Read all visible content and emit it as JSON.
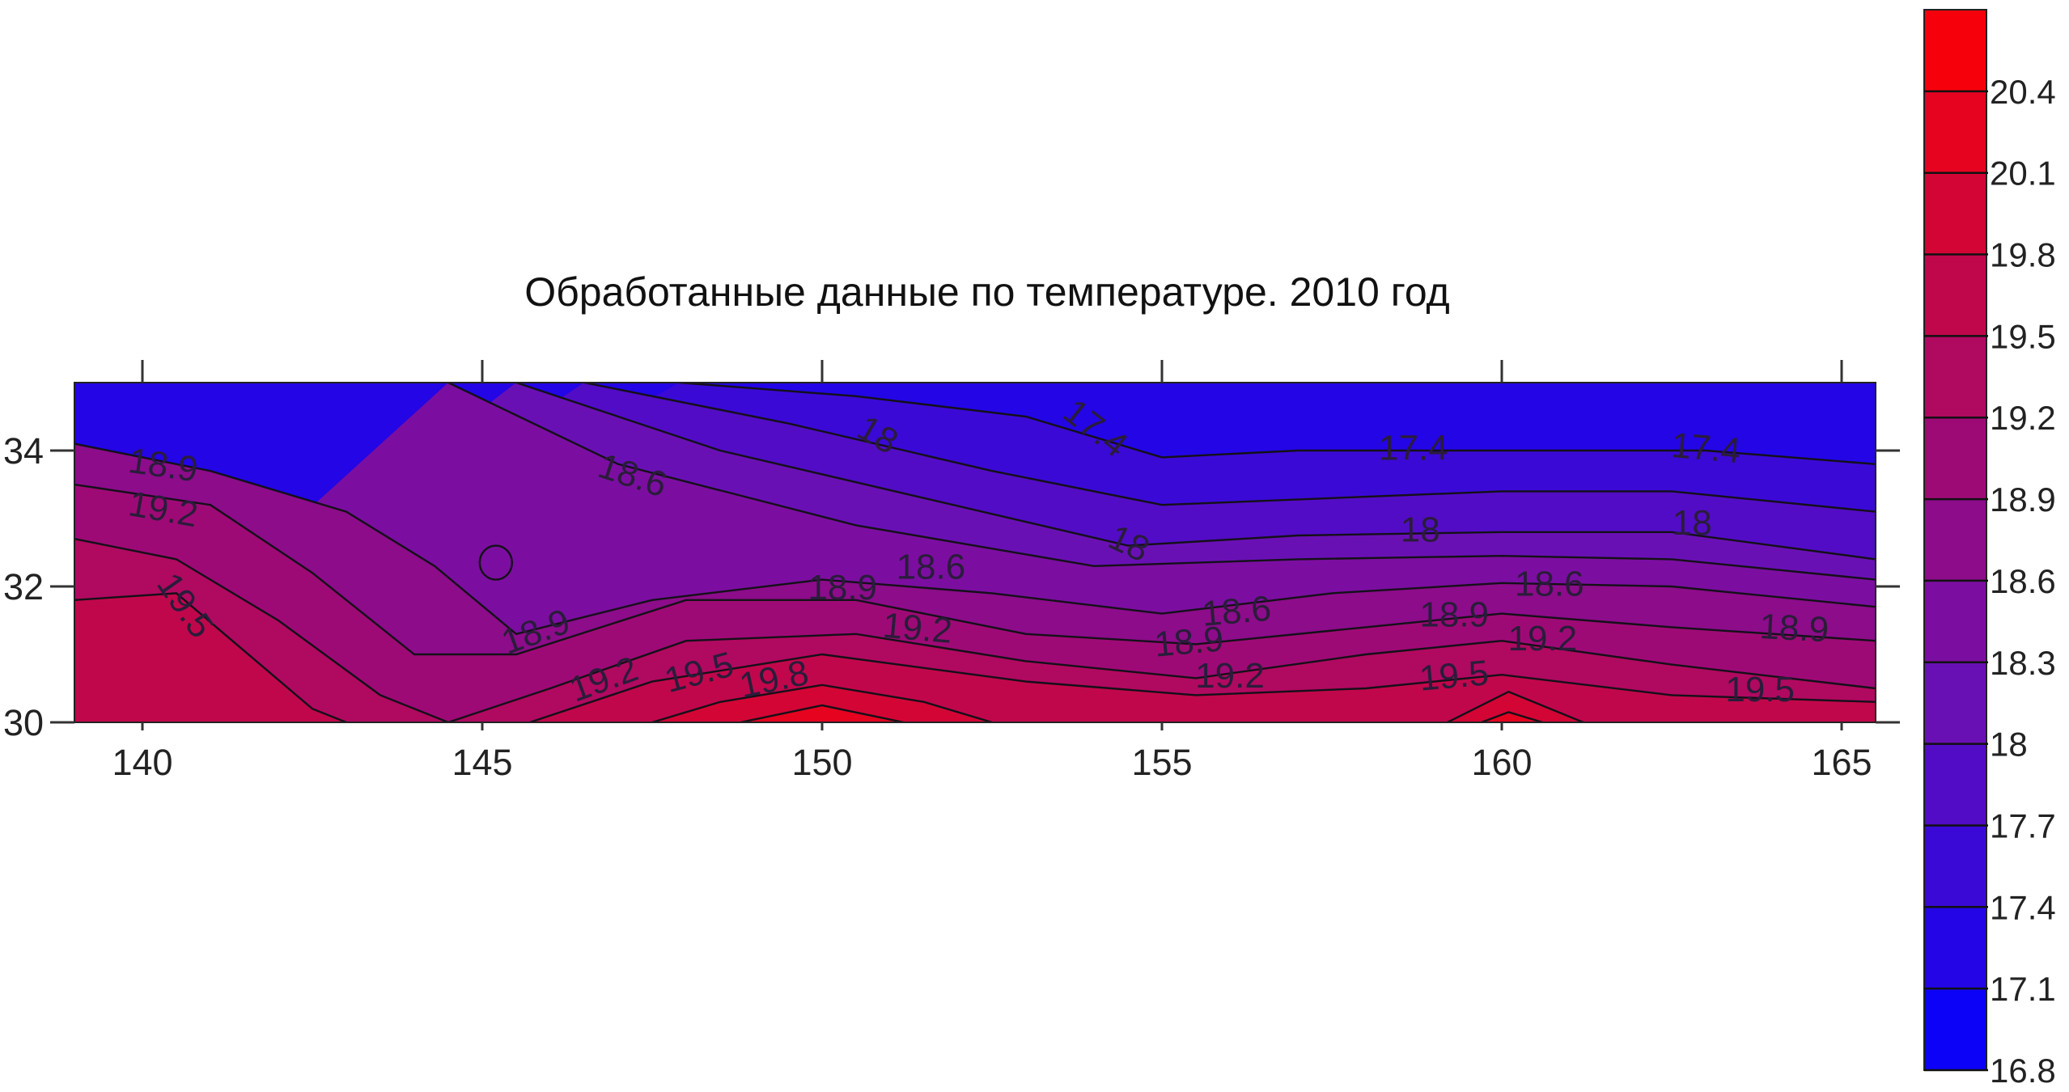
{
  "chart_data": {
    "type": "heatmap",
    "subtype": "filled-contour",
    "title": "Обработанные данные по температуре. 2010 год",
    "xlabel": "",
    "ylabel": "",
    "xlim": [
      139,
      165.5
    ],
    "ylim": [
      30,
      35
    ],
    "xticks": [
      "140",
      "145",
      "150",
      "155",
      "160",
      "165"
    ],
    "yticks": [
      "30",
      "32",
      "34"
    ],
    "colormap": {
      "low_color": "#0000ff",
      "mid_color": "#6a10b4",
      "high_color": "#ff0000"
    },
    "colorbar": {
      "range": [
        16.8,
        20.7
      ],
      "tick_labels": [
        "16.8",
        "17.1",
        "17.4",
        "17.7",
        "18",
        "18.3",
        "18.6",
        "18.9",
        "19.2",
        "19.5",
        "19.8",
        "20.1",
        "20.4"
      ]
    },
    "contours": [
      {
        "level": 17.4,
        "points": [
          [
            147.9,
            35
          ],
          [
            150.5,
            34.8
          ],
          [
            153,
            34.5
          ],
          [
            155,
            33.9
          ],
          [
            157,
            34.0
          ],
          [
            159,
            34.0
          ],
          [
            161,
            34.0
          ],
          [
            163,
            34.0
          ],
          [
            165.5,
            33.8
          ]
        ]
      },
      {
        "level": 17.7,
        "points": [
          [
            146.5,
            35
          ],
          [
            149.5,
            34.4
          ],
          [
            152.5,
            33.7
          ],
          [
            155,
            33.2
          ],
          [
            157.5,
            33.3
          ],
          [
            160,
            33.4
          ],
          [
            162.5,
            33.4
          ],
          [
            165.5,
            33.1
          ]
        ]
      },
      {
        "level": 18.0,
        "points": [
          [
            145.5,
            35
          ],
          [
            148.5,
            34.0
          ],
          [
            151.5,
            33.3
          ],
          [
            154.5,
            32.6
          ],
          [
            157,
            32.75
          ],
          [
            160,
            32.8
          ],
          [
            162.5,
            32.8
          ],
          [
            165.5,
            32.4
          ]
        ]
      },
      {
        "level": 18.3,
        "points": [
          [
            144.5,
            35
          ],
          [
            147,
            33.8
          ],
          [
            150.5,
            32.9
          ],
          [
            154,
            32.3
          ],
          [
            157,
            32.4
          ],
          [
            160,
            32.45
          ],
          [
            162.5,
            32.4
          ],
          [
            165.5,
            32.1
          ]
        ]
      },
      {
        "level": 18.6,
        "points": [
          [
            139,
            34.1
          ],
          [
            141,
            33.7
          ],
          [
            143,
            33.1
          ],
          [
            144.3,
            32.3
          ],
          [
            145.5,
            31.3
          ],
          [
            147.5,
            31.8
          ],
          [
            150,
            32.1
          ],
          [
            152.5,
            31.9
          ],
          [
            155,
            31.6
          ],
          [
            157.5,
            31.9
          ],
          [
            160,
            32.05
          ],
          [
            162.5,
            32.0
          ],
          [
            165.5,
            31.7
          ]
        ]
      },
      {
        "level": 18.9,
        "points": [
          [
            139,
            33.5
          ],
          [
            141,
            33.2
          ],
          [
            142.5,
            32.2
          ],
          [
            144,
            31.0
          ],
          [
            145.5,
            31.0
          ],
          [
            148,
            31.8
          ],
          [
            150.5,
            31.8
          ],
          [
            153,
            31.3
          ],
          [
            155.5,
            31.15
          ],
          [
            158,
            31.4
          ],
          [
            160,
            31.6
          ],
          [
            162.5,
            31.4
          ],
          [
            165.5,
            31.2
          ]
        ]
      },
      {
        "level": 19.2,
        "points": [
          [
            139,
            32.7
          ],
          [
            140.5,
            32.4
          ],
          [
            142,
            31.5
          ],
          [
            143.5,
            30.4
          ],
          [
            144.5,
            30.0
          ],
          [
            146,
            30.5
          ],
          [
            148,
            31.2
          ],
          [
            150.5,
            31.3
          ],
          [
            153,
            30.9
          ],
          [
            155.5,
            30.65
          ],
          [
            158,
            31.0
          ],
          [
            160,
            31.2
          ],
          [
            162.5,
            30.85
          ],
          [
            165.5,
            30.5
          ]
        ]
      },
      {
        "level": 19.5,
        "points": [
          [
            139,
            31.8
          ],
          [
            140.5,
            31.9
          ],
          [
            142.5,
            30.2
          ],
          [
            143,
            30.0
          ]
        ]
      },
      {
        "level": 19.5,
        "points": [
          [
            145.7,
            30.0
          ],
          [
            147.5,
            30.6
          ],
          [
            150,
            31.0
          ],
          [
            153,
            30.6
          ],
          [
            155.5,
            30.4
          ],
          [
            158,
            30.5
          ],
          [
            160,
            30.7
          ],
          [
            162.5,
            30.4
          ],
          [
            165.5,
            30.3
          ]
        ]
      },
      {
        "level": 19.8,
        "points": [
          [
            147.5,
            30.0
          ],
          [
            148.5,
            30.3
          ],
          [
            150,
            30.55
          ],
          [
            151.5,
            30.3
          ],
          [
            152.5,
            30.0
          ]
        ]
      },
      {
        "level": 20.1,
        "points": [
          [
            148.8,
            30.0
          ],
          [
            150,
            30.25
          ],
          [
            151.2,
            30.0
          ]
        ]
      },
      {
        "level": 19.8,
        "points": [
          [
            159.2,
            30.0
          ],
          [
            160.1,
            30.45
          ],
          [
            161.2,
            30.0
          ]
        ]
      },
      {
        "level": 20.1,
        "points": [
          [
            159.7,
            30.0
          ],
          [
            160.1,
            30.15
          ],
          [
            160.6,
            30.0
          ]
        ]
      }
    ],
    "contour_labels": [
      {
        "text": "18.9",
        "x": 140.3,
        "y": 33.75,
        "angle": 8
      },
      {
        "text": "19.2",
        "x": 140.3,
        "y": 33.1,
        "angle": 10
      },
      {
        "text": "19.5",
        "x": 140.6,
        "y": 31.7,
        "angle": 55
      },
      {
        "text": "18.6",
        "x": 147.2,
        "y": 33.6,
        "angle": 18
      },
      {
        "text": "18",
        "x": 150.8,
        "y": 34.2,
        "angle": 30
      },
      {
        "text": "17.4",
        "x": 154,
        "y": 34.3,
        "angle": 38
      },
      {
        "text": "17.4",
        "x": 158.7,
        "y": 34.0,
        "angle": 0
      },
      {
        "text": "17.4",
        "x": 163,
        "y": 34.0,
        "angle": 5
      },
      {
        "text": "18",
        "x": 154.5,
        "y": 32.6,
        "angle": 25
      },
      {
        "text": "18",
        "x": 158.8,
        "y": 32.8,
        "angle": 0
      },
      {
        "text": "18",
        "x": 162.8,
        "y": 32.9,
        "angle": 0
      },
      {
        "text": "18.9",
        "x": 145.8,
        "y": 31.3,
        "angle": -20
      },
      {
        "text": "19.2",
        "x": 146.8,
        "y": 30.6,
        "angle": -20
      },
      {
        "text": "19.5",
        "x": 148.2,
        "y": 30.7,
        "angle": -15
      },
      {
        "text": "19.8",
        "x": 149.3,
        "y": 30.6,
        "angle": -12
      },
      {
        "text": "18.9",
        "x": 150.3,
        "y": 31.95,
        "angle": 0
      },
      {
        "text": "18.6",
        "x": 151.6,
        "y": 32.25,
        "angle": 0
      },
      {
        "text": "19.2",
        "x": 151.4,
        "y": 31.35,
        "angle": 5
      },
      {
        "text": "18.9",
        "x": 155.4,
        "y": 31.15,
        "angle": -5
      },
      {
        "text": "18.6",
        "x": 156.1,
        "y": 31.6,
        "angle": -5
      },
      {
        "text": "19.2",
        "x": 156,
        "y": 30.65,
        "angle": 0
      },
      {
        "text": "18.9",
        "x": 159.3,
        "y": 31.55,
        "angle": 0
      },
      {
        "text": "18.6",
        "x": 160.7,
        "y": 32.0,
        "angle": 0
      },
      {
        "text": "19.2",
        "x": 160.6,
        "y": 31.2,
        "angle": 0
      },
      {
        "text": "19.5",
        "x": 159.3,
        "y": 30.65,
        "angle": -5
      },
      {
        "text": "18.9",
        "x": 164.3,
        "y": 31.35,
        "angle": 3
      },
      {
        "text": "19.5",
        "x": 163.8,
        "y": 30.45,
        "angle": 0
      }
    ]
  }
}
